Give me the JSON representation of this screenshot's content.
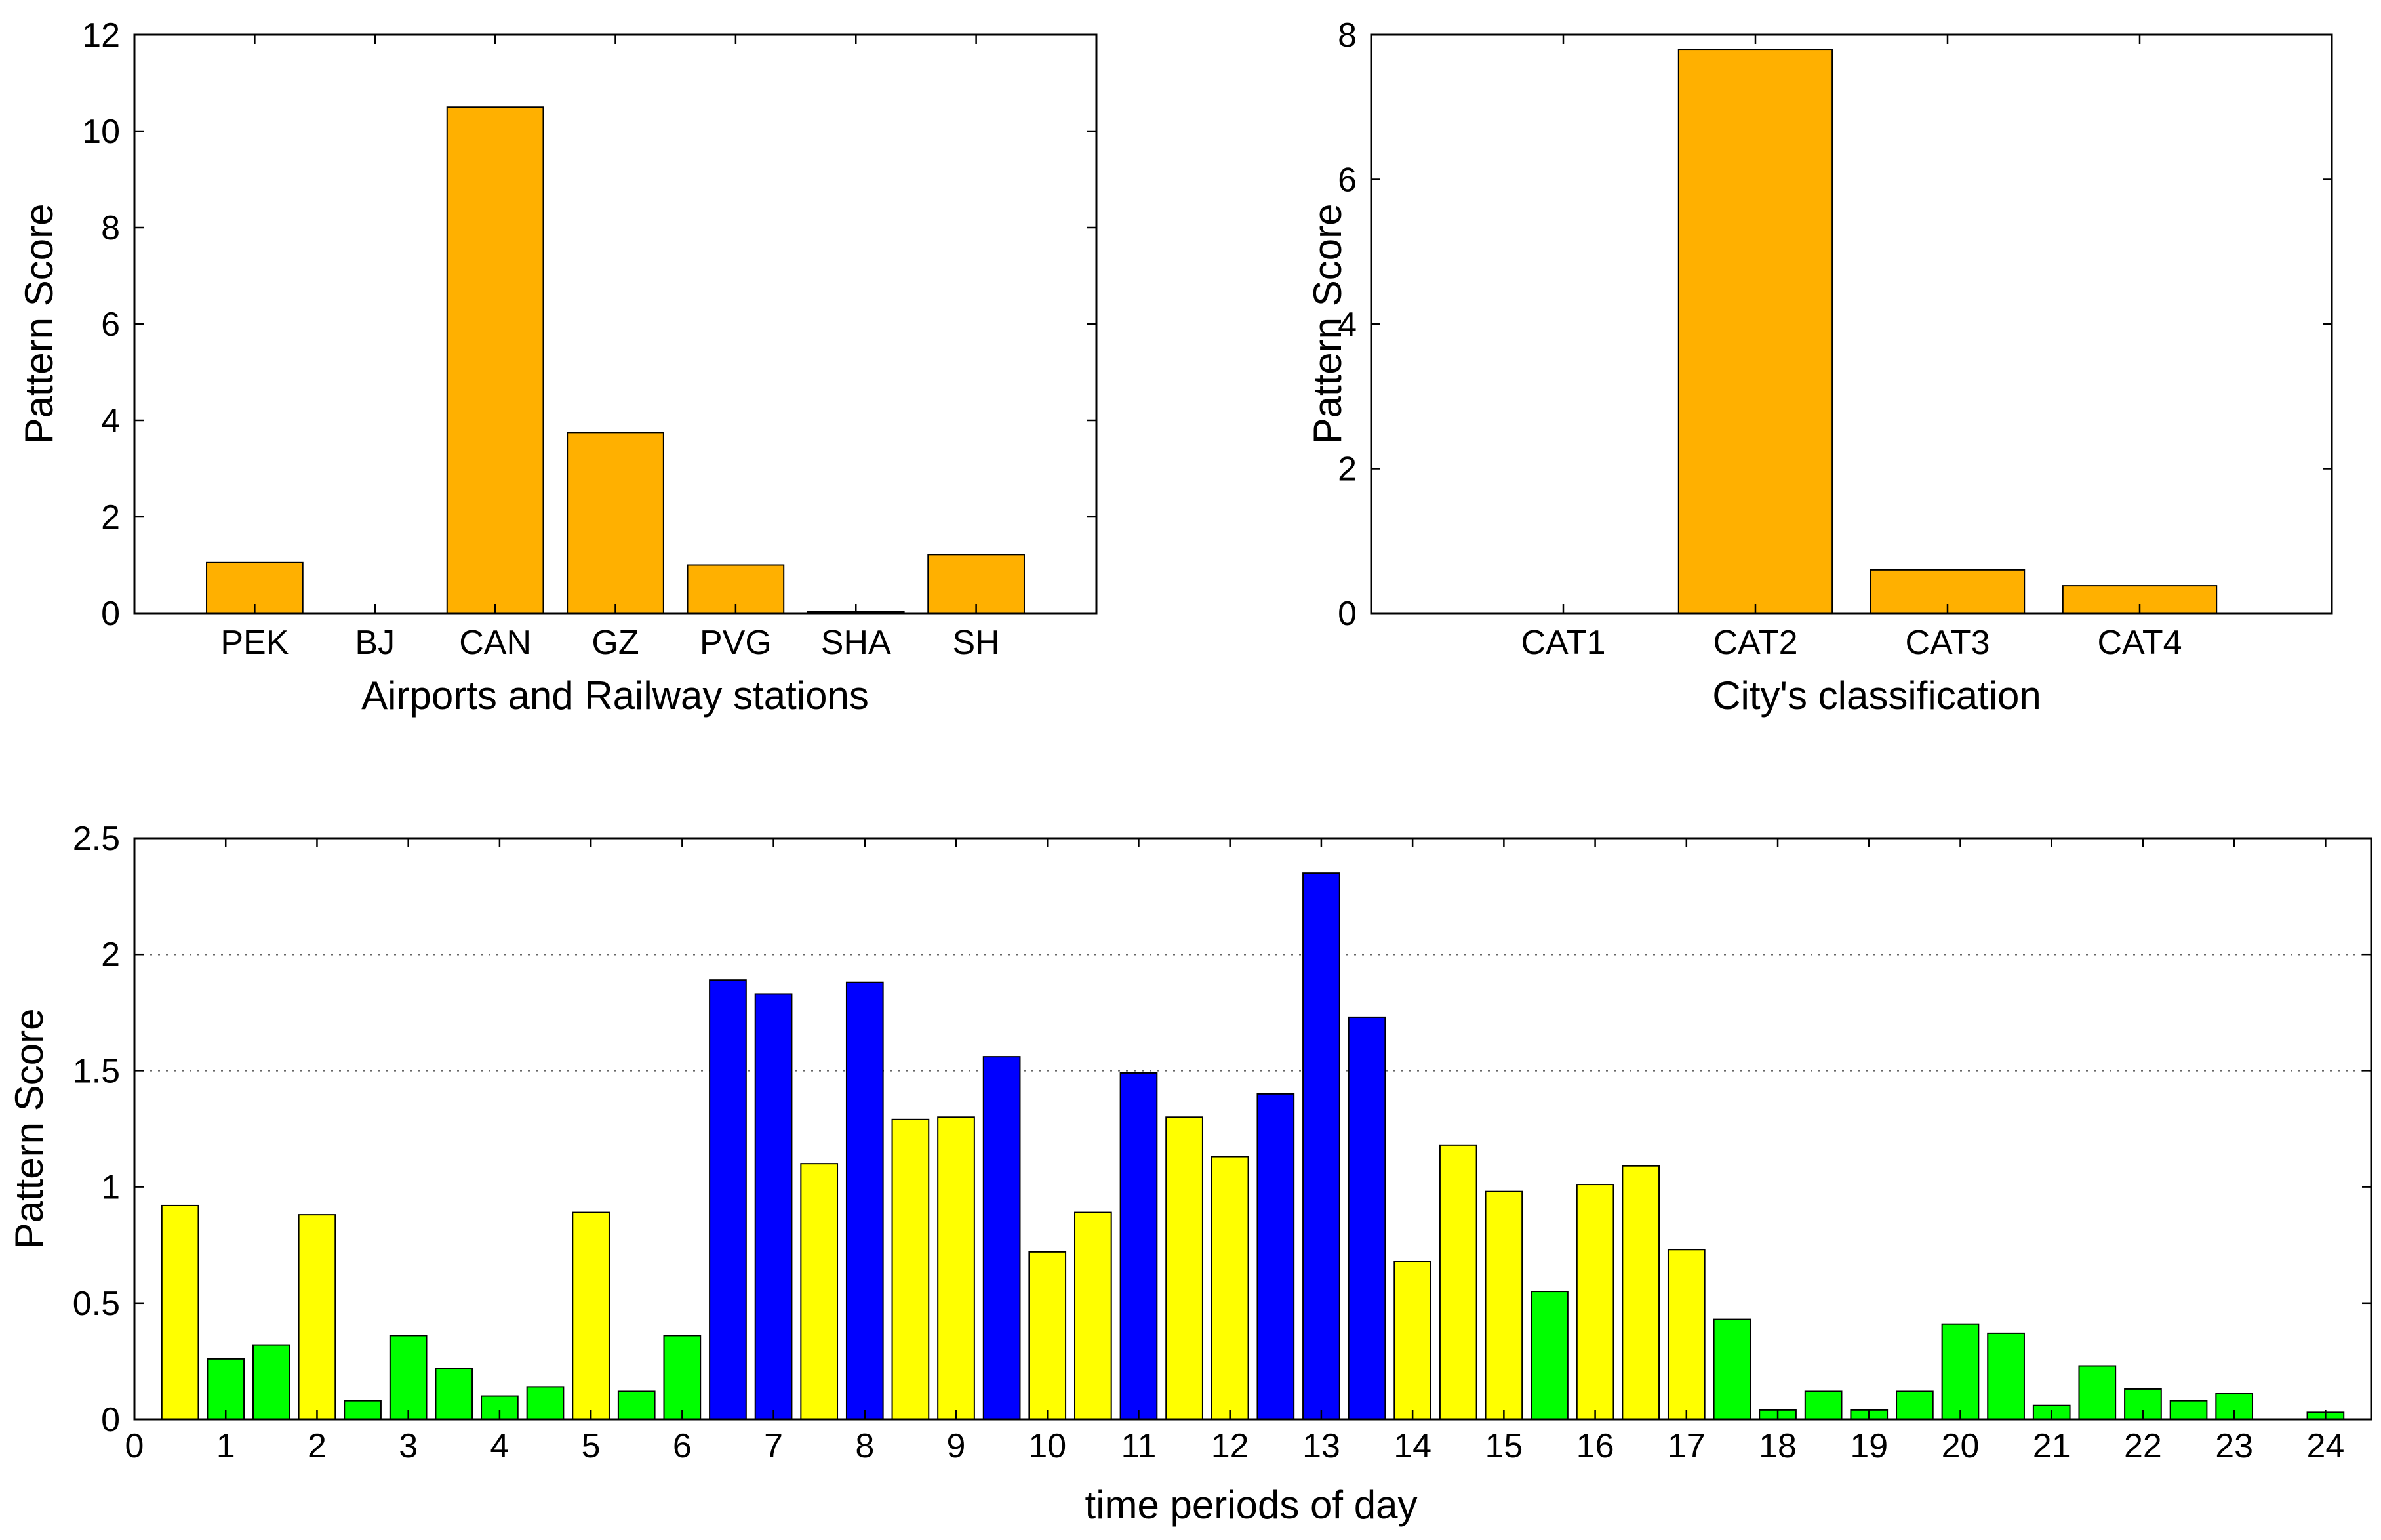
{
  "colors": {
    "orange": "#FFB000",
    "yellow": "#FFFF00",
    "green": "#00FF00",
    "blue": "#0000FF",
    "axis": "#000000",
    "grid": "#666666"
  },
  "chart_data": [
    {
      "type": "bar",
      "id": "stations",
      "title": "",
      "xlabel": "Airports and Railway stations",
      "ylabel": "Pattern Score",
      "categories": [
        "PEK",
        "BJ",
        "CAN",
        "GZ",
        "PVG",
        "SHA",
        "SH"
      ],
      "values": [
        1.05,
        0.0,
        10.5,
        3.75,
        1.0,
        0.03,
        1.22
      ],
      "ylim": [
        0,
        12
      ],
      "yticks": [
        0,
        2,
        4,
        6,
        8,
        10,
        12
      ],
      "ytick_labels": [
        "0",
        "2",
        "4",
        "6",
        "8",
        "10",
        "12"
      ],
      "grid": false,
      "bar_color": "orange"
    },
    {
      "type": "bar",
      "id": "cities",
      "title": "",
      "xlabel": "City's classification",
      "ylabel": "Pattern Score",
      "categories": [
        "CAT1",
        "CAT2",
        "CAT3",
        "CAT4"
      ],
      "values": [
        0.0,
        7.8,
        0.6,
        0.38
      ],
      "ylim": [
        0,
        8
      ],
      "yticks": [
        0,
        2,
        4,
        6,
        8
      ],
      "ytick_labels": [
        "0",
        "2",
        "4",
        "6",
        "8"
      ],
      "grid": false,
      "bar_color": "orange"
    },
    {
      "type": "bar",
      "id": "time",
      "title": "",
      "xlabel": "time periods of day",
      "ylabel": "Pattern Score",
      "xlim": [
        0,
        24.5
      ],
      "ylim": [
        0,
        2.5
      ],
      "xticks": [
        0,
        1,
        2,
        3,
        4,
        5,
        6,
        7,
        8,
        9,
        10,
        11,
        12,
        13,
        14,
        15,
        16,
        17,
        18,
        19,
        20,
        21,
        22,
        23,
        24
      ],
      "xtick_labels": [
        "0",
        "1",
        "2",
        "3",
        "4",
        "5",
        "6",
        "7",
        "8",
        "9",
        "10",
        "11",
        "12",
        "13",
        "14",
        "15",
        "16",
        "17",
        "18",
        "19",
        "20",
        "21",
        "22",
        "23",
        "24"
      ],
      "yticks": [
        0,
        0.5,
        1,
        1.5,
        2,
        2.5
      ],
      "ytick_labels": [
        "0",
        "0.5",
        "1",
        "1.5",
        "2",
        "2.5"
      ],
      "reference_lines": [
        1.5,
        2.0
      ],
      "grid": false,
      "x": [
        0.5,
        1.0,
        1.5,
        2.0,
        2.5,
        3.0,
        3.5,
        4.0,
        4.5,
        5.0,
        5.5,
        6.0,
        6.5,
        7.0,
        7.5,
        8.0,
        8.5,
        9.0,
        9.5,
        10.0,
        10.5,
        11.0,
        11.5,
        12.0,
        12.5,
        13.0,
        13.5,
        14.0,
        14.5,
        15.0,
        15.5,
        16.0,
        16.5,
        17.0,
        17.5,
        18.0,
        18.5,
        19.0,
        19.5,
        20.0,
        20.5,
        21.0,
        21.5,
        22.0,
        22.5,
        23.0,
        23.5,
        24.0
      ],
      "values": [
        0.92,
        0.26,
        0.32,
        0.88,
        0.08,
        0.36,
        0.22,
        0.1,
        0.14,
        0.89,
        0.12,
        0.36,
        1.89,
        1.83,
        1.1,
        1.88,
        1.29,
        1.3,
        1.56,
        0.72,
        0.89,
        1.49,
        1.3,
        1.13,
        1.4,
        2.35,
        1.73,
        0.68,
        1.18,
        0.98,
        0.55,
        1.01,
        1.09,
        0.73,
        0.43,
        0.04,
        0.12,
        0.04,
        0.12,
        0.41,
        0.37,
        0.06,
        0.23,
        0.13,
        0.08,
        0.11,
        0.0,
        0.03
      ],
      "bar_colors": [
        "yellow",
        "green",
        "green",
        "yellow",
        "green",
        "green",
        "green",
        "green",
        "green",
        "yellow",
        "green",
        "green",
        "blue",
        "blue",
        "yellow",
        "blue",
        "yellow",
        "yellow",
        "blue",
        "yellow",
        "yellow",
        "blue",
        "yellow",
        "yellow",
        "blue",
        "blue",
        "blue",
        "yellow",
        "yellow",
        "yellow",
        "green",
        "yellow",
        "yellow",
        "yellow",
        "green",
        "green",
        "green",
        "green",
        "green",
        "green",
        "green",
        "green",
        "green",
        "green",
        "green",
        "green",
        "green",
        "green"
      ]
    }
  ]
}
